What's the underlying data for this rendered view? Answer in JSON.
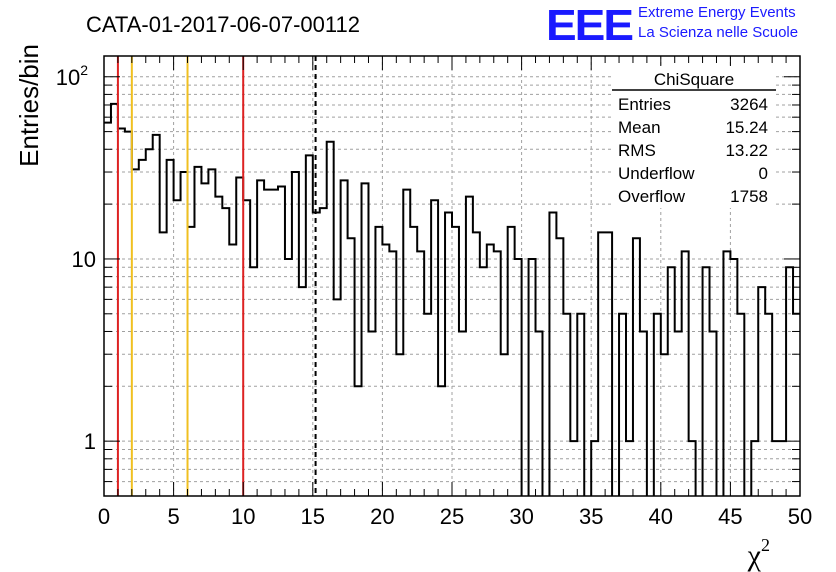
{
  "title": "CATA-01-2017-06-07-00112",
  "logo": {
    "mark": "EEE",
    "line1": "Extreme Energy Events",
    "line2": "La Scienza nelle Scuole",
    "color": "#1a1aff"
  },
  "stats": {
    "name": "ChiSquare",
    "rows": [
      {
        "label": "Entries",
        "value": "3264"
      },
      {
        "label": "Mean",
        "value": "15.24"
      },
      {
        "label": "RMS",
        "value": "13.22"
      },
      {
        "label": "Underflow",
        "value": "0"
      },
      {
        "label": "Overflow",
        "value": "1758"
      }
    ]
  },
  "chart_data": {
    "type": "histogram-step",
    "xlabel": "χ",
    "xlabel_sup": "2",
    "ylabel": "Entries/bin",
    "xlim": [
      0,
      50
    ],
    "ylim": [
      0.5,
      130
    ],
    "ylog": true,
    "grid": true,
    "bin_width": 0.5,
    "x_ticks": [
      0,
      5,
      10,
      15,
      20,
      25,
      30,
      35,
      40,
      45,
      50
    ],
    "y_ticks": [
      {
        "value": 1,
        "label": "1",
        "sup": ""
      },
      {
        "value": 10,
        "label": "10",
        "sup": ""
      },
      {
        "value": 100,
        "label": "10",
        "sup": "2"
      }
    ],
    "values": [
      56,
      71,
      52,
      50,
      31,
      35,
      40,
      48,
      14,
      35,
      21,
      30,
      15,
      32,
      26,
      31,
      22,
      19,
      12,
      28,
      21,
      9,
      27,
      24,
      24,
      25,
      10,
      30,
      7,
      37,
      18,
      19,
      44,
      6,
      27,
      13,
      2,
      26,
      4,
      15,
      12,
      11,
      3,
      24,
      15,
      11,
      5,
      21,
      2,
      18,
      15,
      4,
      22,
      14,
      9,
      12,
      11,
      3,
      15,
      10,
      0.3,
      10,
      4,
      0.3,
      18,
      13,
      5,
      1,
      5,
      0.3,
      1,
      14,
      14,
      0.3,
      5,
      1,
      13,
      4,
      0.3,
      5,
      3,
      9,
      4,
      11,
      1,
      0.3,
      9,
      4,
      0.3,
      11,
      10,
      5,
      0.3,
      1,
      7,
      5,
      1,
      1,
      9,
      5
    ],
    "lines": [
      {
        "x": 1,
        "color": "#dd2222",
        "style": "solid"
      },
      {
        "x": 2,
        "color": "#f0c020",
        "style": "solid"
      },
      {
        "x": 6,
        "color": "#f0c020",
        "style": "solid"
      },
      {
        "x": 10,
        "color": "#dd2222",
        "style": "solid"
      },
      {
        "x": 15.2,
        "color": "#000000",
        "style": "dashed"
      }
    ]
  }
}
